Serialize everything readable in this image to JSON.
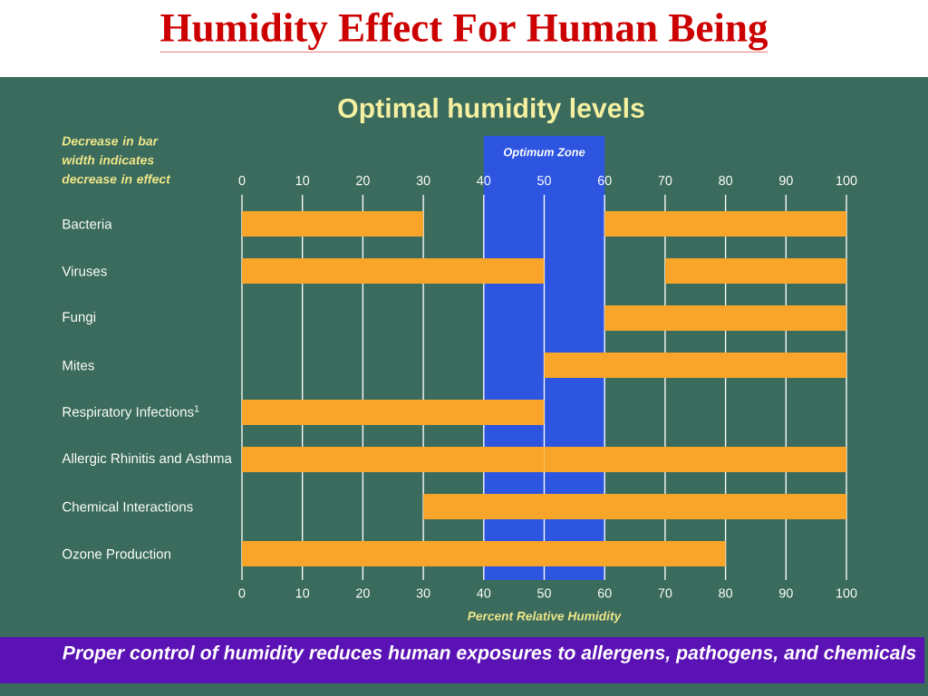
{
  "chart_data": {
    "type": "bar",
    "orientation": "horizontal",
    "title": "Humidity Effect For Human Being",
    "subtitle": "Optimal humidity levels",
    "xlabel": "Percent Relative Humidity",
    "categories": [
      "Bacteria",
      "Viruses",
      "Fungi",
      "Mites",
      "Respiratory Infections$^{1}$",
      "Allergic Rhinitis and Asthma",
      "Chemical Interactions",
      "Ozone Production"
    ],
    "series": [
      {
        "color": "#f9a52a",
        "base": [
          0,
          0,
          null,
          null,
          0,
          0,
          null,
          0
        ],
        "values": [
          30,
          50,
          null,
          null,
          50,
          50,
          null,
          80
        ]
      },
      {
        "color": "#f9a52a",
        "base": [
          60,
          70,
          60,
          50,
          null,
          50,
          30,
          null
        ],
        "values": [
          40,
          30,
          40,
          50,
          null,
          50,
          70,
          null
        ]
      }
    ],
    "xlim": [
      0,
      100
    ],
    "xticks": [
      0,
      10,
      20,
      30,
      40,
      50,
      60,
      70,
      80,
      90,
      100
    ],
    "x2lim": [
      0,
      100
    ],
    "x2ticks": [
      0,
      10,
      20,
      30,
      40,
      50,
      60,
      70,
      80,
      90,
      100
    ],
    "grid": "x",
    "bands": [
      {
        "axis": "x",
        "from": 40,
        "to": 60,
        "label": "Optimum Zone",
        "color": "#2d55e0"
      }
    ],
    "annotations": [
      "Decrease in bar width indicates decrease in effect",
      "Proper control of humidity reduces human exposures to allergens, pathogens, and chemicals"
    ]
  }
}
